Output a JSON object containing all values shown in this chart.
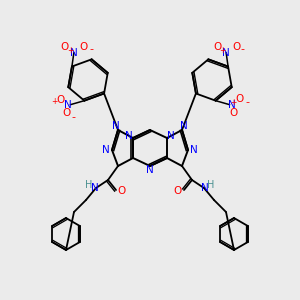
{
  "bg_color": "#ebebeb",
  "atom_colors": {
    "N": "#0000ff",
    "O": "#ff0000",
    "C": "#000000",
    "H": "#4a9090"
  },
  "bond_color": "#000000"
}
